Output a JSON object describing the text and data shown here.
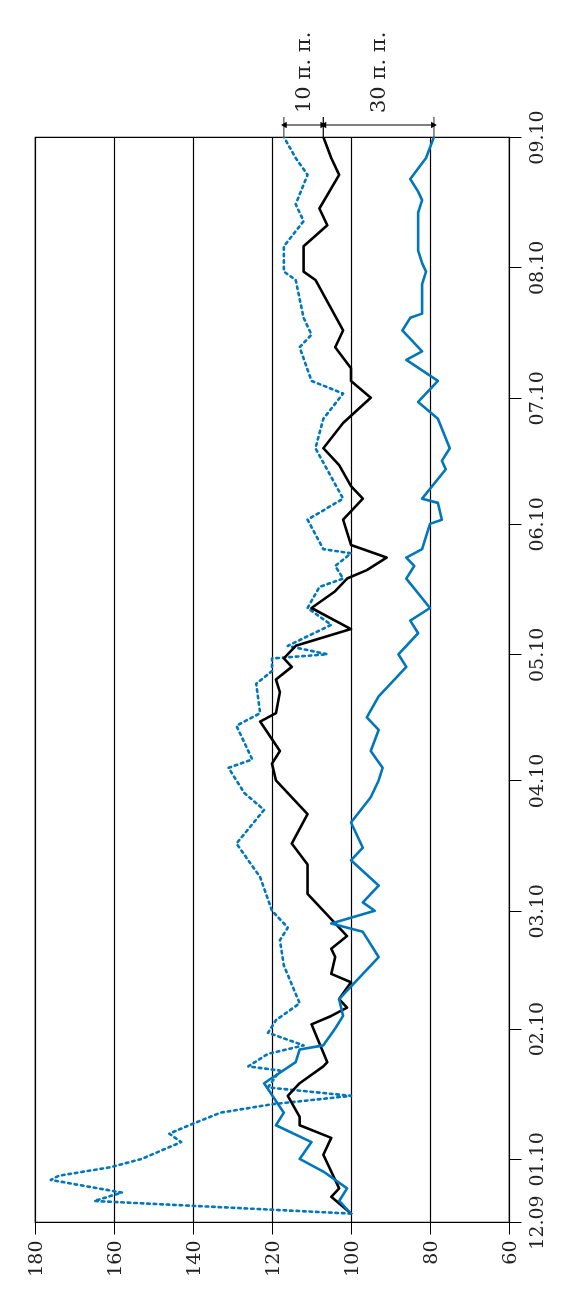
{
  "chart_data": {
    "type": "line",
    "orientation": "horizontal",
    "xlim": [
      180,
      60
    ],
    "xticks": [
      180,
      160,
      140,
      120,
      100,
      80,
      60
    ],
    "ylim": [
      "2009-12-17",
      "2010-09-01"
    ],
    "yticks": [
      {
        "value": "2009-12-17",
        "label": "12.09"
      },
      {
        "value": "2010-01-01",
        "label": "01.10"
      },
      {
        "value": "2010-02-01",
        "label": "02.10"
      },
      {
        "value": "2010-03-01",
        "label": "03.10"
      },
      {
        "value": "2010-04-01",
        "label": "04.10"
      },
      {
        "value": "2010-05-01",
        "label": "05.10"
      },
      {
        "value": "2010-06-01",
        "label": "06.10"
      },
      {
        "value": "2010-07-01",
        "label": "07.10"
      },
      {
        "value": "2010-08-01",
        "label": "08.10"
      },
      {
        "value": "2010-09-01",
        "label": "09.10"
      }
    ],
    "grid": "x",
    "annotations": [
      "10 п. п.",
      "30 п. п."
    ],
    "series": [
      {
        "color": "#0077bb",
        "line_style": "dotted",
        "x": [
          "2009-12-19",
          "2009-12-22",
          "2009-12-24",
          "2009-12-25",
          "2009-12-27",
          "2009-12-28",
          "2009-12-30",
          "2010-01-01",
          "2010-01-05",
          "2010-01-07",
          "2010-01-09",
          "2010-01-12",
          "2010-01-14",
          "2010-01-16",
          "2010-01-18",
          "2010-01-22",
          "2010-01-23",
          "2010-01-26",
          "2010-01-28",
          "2010-01-31",
          "2010-02-03",
          "2010-02-07",
          "2010-02-16",
          "2010-02-22",
          "2010-02-25",
          "2010-03-01",
          "2010-03-09",
          "2010-03-17",
          "2010-03-25",
          "2010-03-29",
          "2010-04-04",
          "2010-04-06",
          "2010-04-14",
          "2010-04-17",
          "2010-04-24",
          "2010-04-27",
          "2010-04-30",
          "2010-05-01",
          "2010-05-03",
          "2010-05-08",
          "2010-05-12",
          "2010-05-17",
          "2010-05-19",
          "2010-05-22",
          "2010-05-25",
          "2010-05-26",
          "2010-06-02",
          "2010-06-07",
          "2010-06-19",
          "2010-06-26",
          "2010-07-02",
          "2010-07-05",
          "2010-07-13",
          "2010-07-16",
          "2010-07-20",
          "2010-07-29",
          "2010-07-31",
          "2010-08-06",
          "2010-08-12",
          "2010-08-16",
          "2010-08-23",
          "2010-08-27",
          "2010-09-01"
        ],
        "values": [
          100,
          165,
          158,
          164,
          176,
          174,
          161,
          153,
          143,
          146,
          141,
          133,
          120,
          100,
          121,
          118,
          126,
          121,
          112,
          121,
          119,
          113,
          117,
          118,
          116,
          120,
          123,
          129,
          122,
          127,
          131,
          125,
          129,
          123,
          124,
          120,
          120,
          106,
          116,
          105,
          111,
          108,
          102,
          104,
          100,
          107,
          111,
          102,
          109,
          107,
          102,
          110,
          113,
          110,
          112,
          114,
          117,
          117,
          112,
          114,
          111,
          114,
          117
        ]
      },
      {
        "color": "#000000",
        "x": [
          "2009-12-19",
          "2009-12-23",
          "2009-12-25",
          "2010-01-02",
          "2010-01-06",
          "2010-01-09",
          "2010-01-11",
          "2010-01-16",
          "2010-01-19",
          "2010-01-23",
          "2010-01-24",
          "2010-02-02",
          "2010-02-04",
          "2010-02-06",
          "2010-02-08",
          "2010-02-12",
          "2010-02-14",
          "2010-02-18",
          "2010-02-20",
          "2010-02-23",
          "2010-02-26",
          "2010-03-05",
          "2010-03-12",
          "2010-03-17",
          "2010-03-24",
          "2010-04-01",
          "2010-04-05",
          "2010-04-08",
          "2010-04-15",
          "2010-04-17",
          "2010-04-22",
          "2010-04-25",
          "2010-04-28",
          "2010-04-30",
          "2010-05-03",
          "2010-05-07",
          "2010-05-12",
          "2010-05-16",
          "2010-05-19",
          "2010-05-21",
          "2010-05-24",
          "2010-05-27",
          "2010-06-02",
          "2010-06-07",
          "2010-06-10",
          "2010-06-15",
          "2010-06-19",
          "2010-06-25",
          "2010-07-01",
          "2010-07-05",
          "2010-07-08",
          "2010-07-13",
          "2010-07-17",
          "2010-07-29",
          "2010-07-31",
          "2010-08-06",
          "2010-08-11",
          "2010-08-15",
          "2010-08-23",
          "2010-08-27",
          "2010-09-01"
        ],
        "values": [
          100,
          105,
          103,
          107,
          105,
          113,
          113,
          116,
          113,
          107,
          106,
          110,
          105,
          101,
          103,
          100,
          105,
          104,
          105,
          101,
          104,
          111,
          111,
          115,
          111,
          119,
          120,
          118,
          123,
          119,
          118,
          119,
          115,
          117,
          114,
          100,
          110,
          104,
          101,
          96,
          91,
          100,
          102,
          97,
          100,
          103,
          107,
          102,
          95,
          100,
          100,
          104,
          102,
          109,
          112,
          112,
          106,
          108,
          103,
          105,
          107
        ]
      },
      {
        "color": "#0077bb",
        "x": [
          "2009-12-19",
          "2009-12-22",
          "2009-12-25",
          "2009-12-29",
          "2010-01-01",
          "2010-01-05",
          "2010-01-09",
          "2010-01-12",
          "2010-01-19",
          "2010-01-24",
          "2010-01-27",
          "2010-01-28",
          "2010-02-01",
          "2010-02-04",
          "2010-02-08",
          "2010-02-18",
          "2010-02-24",
          "2010-02-26",
          "2010-03-01",
          "2010-03-03",
          "2010-03-07",
          "2010-03-13",
          "2010-03-16",
          "2010-03-22",
          "2010-03-28",
          "2010-04-01",
          "2010-04-04",
          "2010-04-08",
          "2010-04-13",
          "2010-04-16",
          "2010-04-21",
          "2010-04-26",
          "2010-04-28",
          "2010-05-01",
          "2010-05-06",
          "2010-05-09",
          "2010-05-12",
          "2010-05-19",
          "2010-05-22",
          "2010-05-24",
          "2010-05-26",
          "2010-06-01",
          "2010-06-02",
          "2010-06-06",
          "2010-06-07",
          "2010-06-14",
          "2010-06-16",
          "2010-06-19",
          "2010-06-26",
          "2010-06-30",
          "2010-07-05",
          "2010-07-10",
          "2010-07-12",
          "2010-07-17",
          "2010-07-20",
          "2010-07-21",
          "2010-07-28",
          "2010-07-31",
          "2010-08-02",
          "2010-08-05",
          "2010-08-14",
          "2010-08-17",
          "2010-08-19",
          "2010-08-22",
          "2010-08-27",
          "2010-09-01"
        ],
        "values": [
          100,
          103,
          101,
          107,
          113,
          110,
          119,
          117,
          122,
          114,
          113,
          107,
          104,
          102,
          103,
          93,
          97,
          105,
          94,
          97,
          93,
          100,
          97,
          100,
          95,
          93,
          92,
          95,
          93,
          96,
          93,
          88,
          86,
          88,
          83,
          85,
          80,
          86,
          84,
          86,
          82,
          80,
          77,
          78,
          82,
          76,
          77,
          75,
          78,
          83,
          78,
          86,
          82,
          87,
          85,
          82,
          82,
          81,
          82,
          83,
          83,
          82,
          83,
          85,
          81,
          79
        ]
      }
    ]
  }
}
